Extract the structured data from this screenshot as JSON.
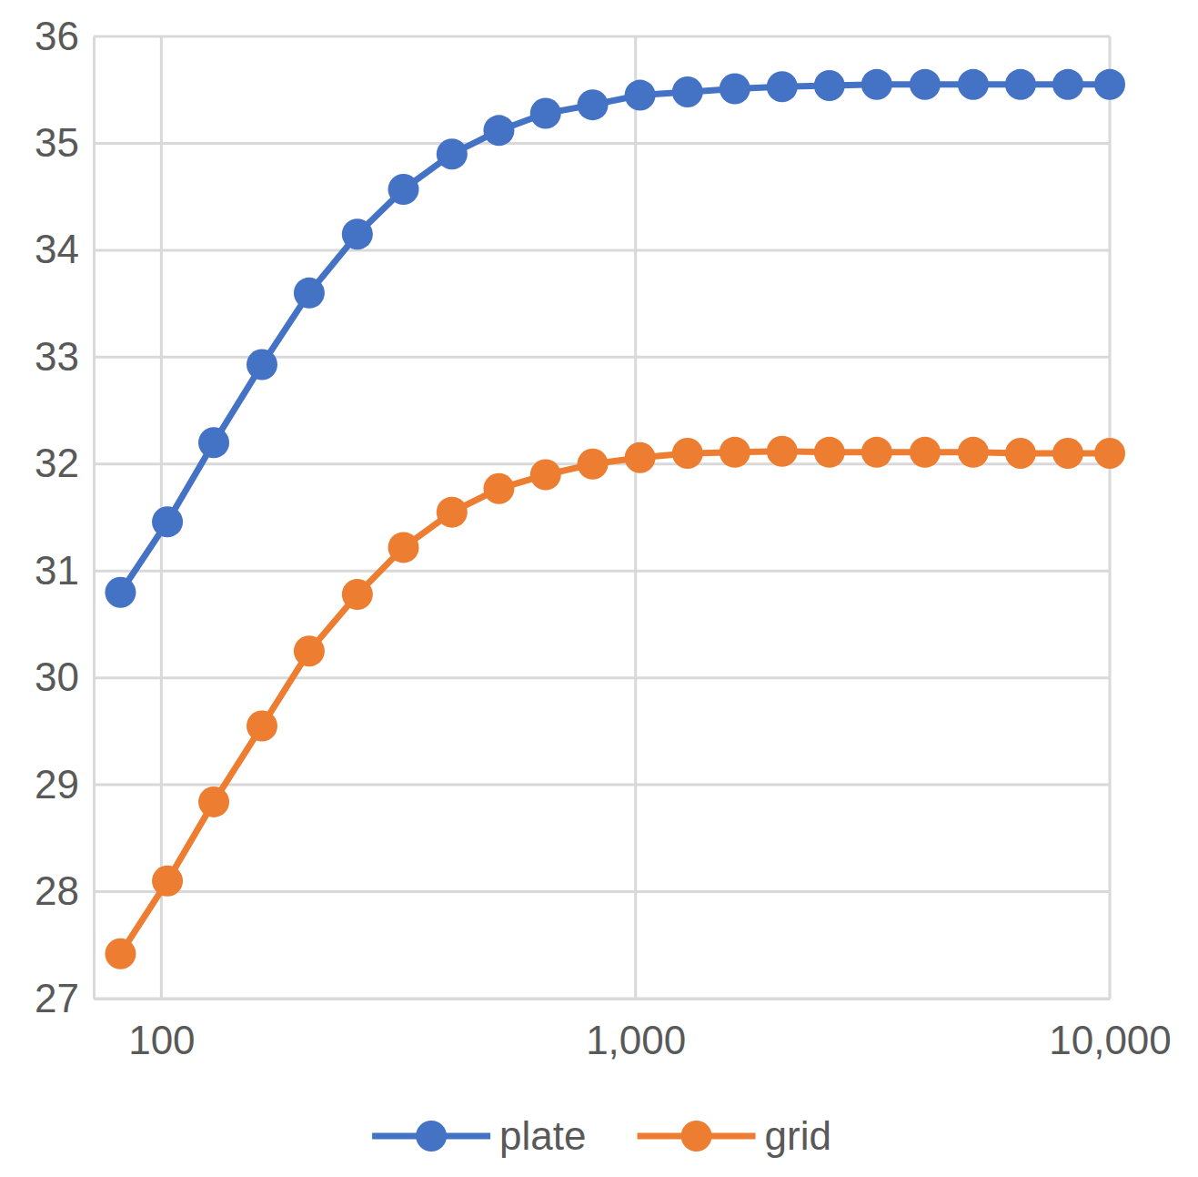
{
  "chart_data": {
    "type": "line",
    "x": [
      82,
      103,
      129,
      163,
      205,
      259,
      324,
      410,
      515,
      646,
      812,
      1022,
      1287,
      1619,
      2037,
      2563,
      3225,
      4077,
      5153,
      6484,
      8161,
      10000
    ],
    "series": [
      {
        "name": "plate",
        "color": "#4472c4",
        "marker": "circle",
        "line_style": "solid",
        "values": [
          30.8,
          31.46,
          32.2,
          32.93,
          33.6,
          34.15,
          34.57,
          34.9,
          35.12,
          35.28,
          35.36,
          35.45,
          35.48,
          35.51,
          35.53,
          35.54,
          35.55,
          35.55,
          35.55,
          35.55,
          35.55,
          35.55
        ]
      },
      {
        "name": "grid",
        "color": "#ed7d31",
        "marker": "circle",
        "line_style": "solid",
        "values": [
          27.42,
          28.1,
          28.84,
          29.55,
          30.25,
          30.78,
          31.22,
          31.55,
          31.77,
          31.9,
          32.0,
          32.06,
          32.1,
          32.11,
          32.12,
          32.11,
          32.11,
          32.11,
          32.11,
          32.1,
          32.1,
          32.1
        ]
      }
    ],
    "xlim": [
      72,
      10000
    ],
    "xticks": [
      100,
      {
        "value": 1000,
        "label": "1,000"
      },
      {
        "value": 10000,
        "label": "10,000"
      }
    ],
    "ylim": [
      27,
      36
    ],
    "yticks": [
      27,
      28,
      29,
      30,
      31,
      32,
      33,
      34,
      35,
      36
    ],
    "log": "x",
    "grid": true,
    "legend": "bottom"
  }
}
